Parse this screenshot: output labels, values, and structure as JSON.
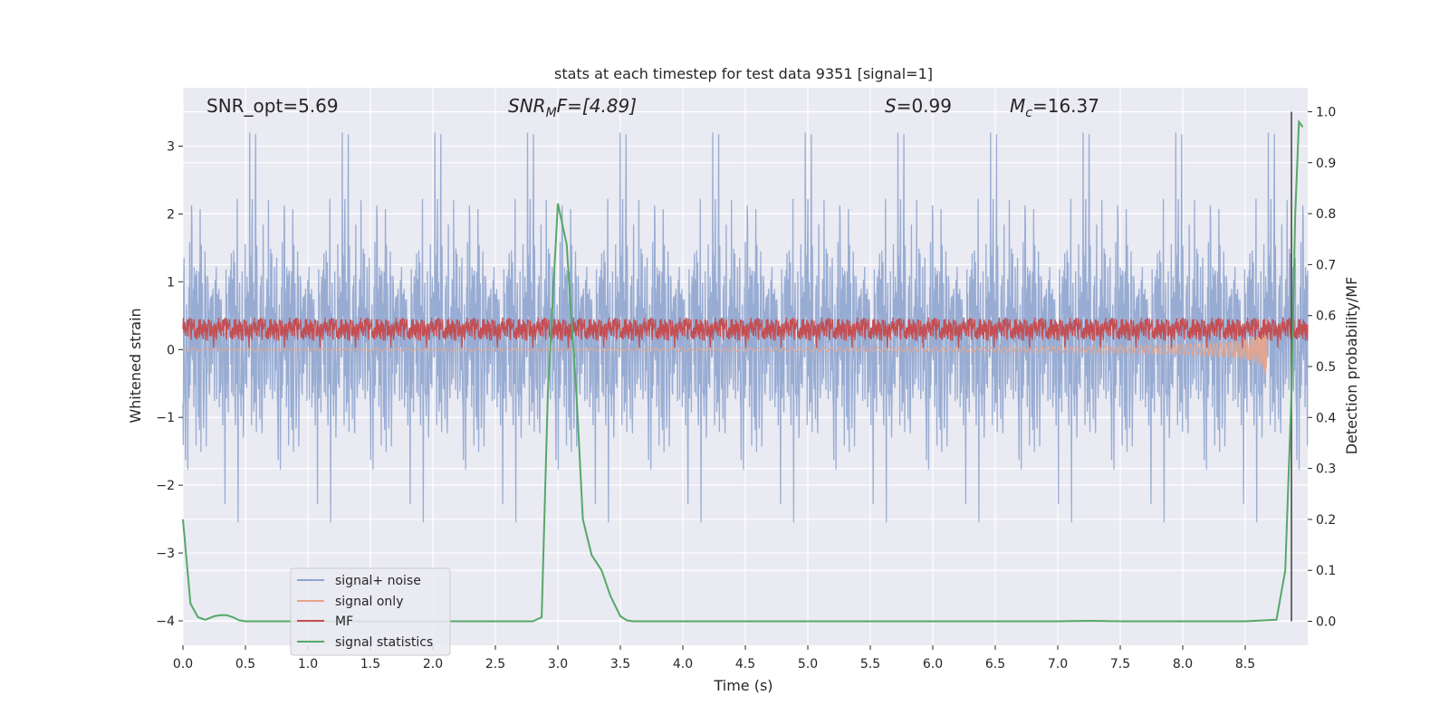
{
  "chart_data": {
    "type": "line",
    "title": "stats at each timestep for test data 9351 [signal=1]",
    "xlabel": "Time (s)",
    "ylabel": "Whitened strain",
    "y2label": "Detection probability/MF",
    "xlim": [
      0.0,
      9.0
    ],
    "ylim": [
      -4.36,
      3.86
    ],
    "y2lim": [
      -0.047,
      1.047
    ],
    "grid": true,
    "legend_position": "lower-left",
    "x_ticks": [
      "0.0",
      "0.5",
      "1.0",
      "1.5",
      "2.0",
      "2.5",
      "3.0",
      "3.5",
      "4.0",
      "4.5",
      "5.0",
      "5.5",
      "6.0",
      "6.5",
      "7.0",
      "7.5",
      "8.0",
      "8.5"
    ],
    "y_ticks": [
      "3",
      "2",
      "1",
      "0",
      "−1",
      "−2",
      "−3",
      "−4"
    ],
    "y2_ticks": [
      "1.0",
      "0.9",
      "0.8",
      "0.7",
      "0.6",
      "0.5",
      "0.4",
      "0.3",
      "0.2",
      "0.1",
      "0.0"
    ],
    "annotations": {
      "snr_opt": "SNR_opt=5.69",
      "snr_mf_main": "SNR",
      "snr_mf_sub": "M",
      "snr_mf_rest": "F=[4.89]",
      "s_main": "S",
      "s_rest": "=0.99",
      "mc_main": "M",
      "mc_sub": "c",
      "mc_rest": "=16.37"
    },
    "marker_line_x": 8.87,
    "series": [
      {
        "name": "signal+ noise",
        "color": "#8fa5cf",
        "axis": "left",
        "style": "noise",
        "amplitude_typical": 1.75,
        "amplitude_peak": 3.45,
        "x_range": [
          0.0,
          9.0
        ]
      },
      {
        "name": "signal only",
        "color": "#e8a48a",
        "axis": "left",
        "style": "chirp",
        "x_range": [
          0.0,
          8.67
        ],
        "amplitude_end": 0.9
      },
      {
        "name": "MF",
        "color": "#c44e52",
        "axis": "left",
        "style": "band",
        "band": [
          0.05,
          0.55
        ],
        "x_range": [
          0.0,
          9.0
        ]
      },
      {
        "name": "signal statistics",
        "color": "#55a868",
        "axis": "right",
        "style": "line",
        "x": [
          0.0,
          0.06,
          0.12,
          0.18,
          0.25,
          0.3,
          0.35,
          0.4,
          0.45,
          0.5,
          1.0,
          2.0,
          2.8,
          2.87,
          2.92,
          3.0,
          3.07,
          3.12,
          3.15,
          3.2,
          3.27,
          3.35,
          3.42,
          3.5,
          3.55,
          3.6,
          4.0,
          5.0,
          6.0,
          7.0,
          7.25,
          7.5,
          8.0,
          8.5,
          8.75,
          8.82,
          8.87,
          8.9,
          8.93,
          8.96
        ],
        "y": [
          0.2,
          0.035,
          0.008,
          0.003,
          0.01,
          0.012,
          0.012,
          0.008,
          0.002,
          0.0,
          0.0,
          0.0,
          0.0,
          0.008,
          0.45,
          0.82,
          0.74,
          0.55,
          0.44,
          0.2,
          0.13,
          0.1,
          0.05,
          0.01,
          0.002,
          0.0,
          0.0,
          0.0,
          0.0,
          0.0,
          0.001,
          0.0,
          0.0,
          0.0,
          0.003,
          0.1,
          0.45,
          0.8,
          0.98,
          0.97
        ]
      }
    ]
  }
}
